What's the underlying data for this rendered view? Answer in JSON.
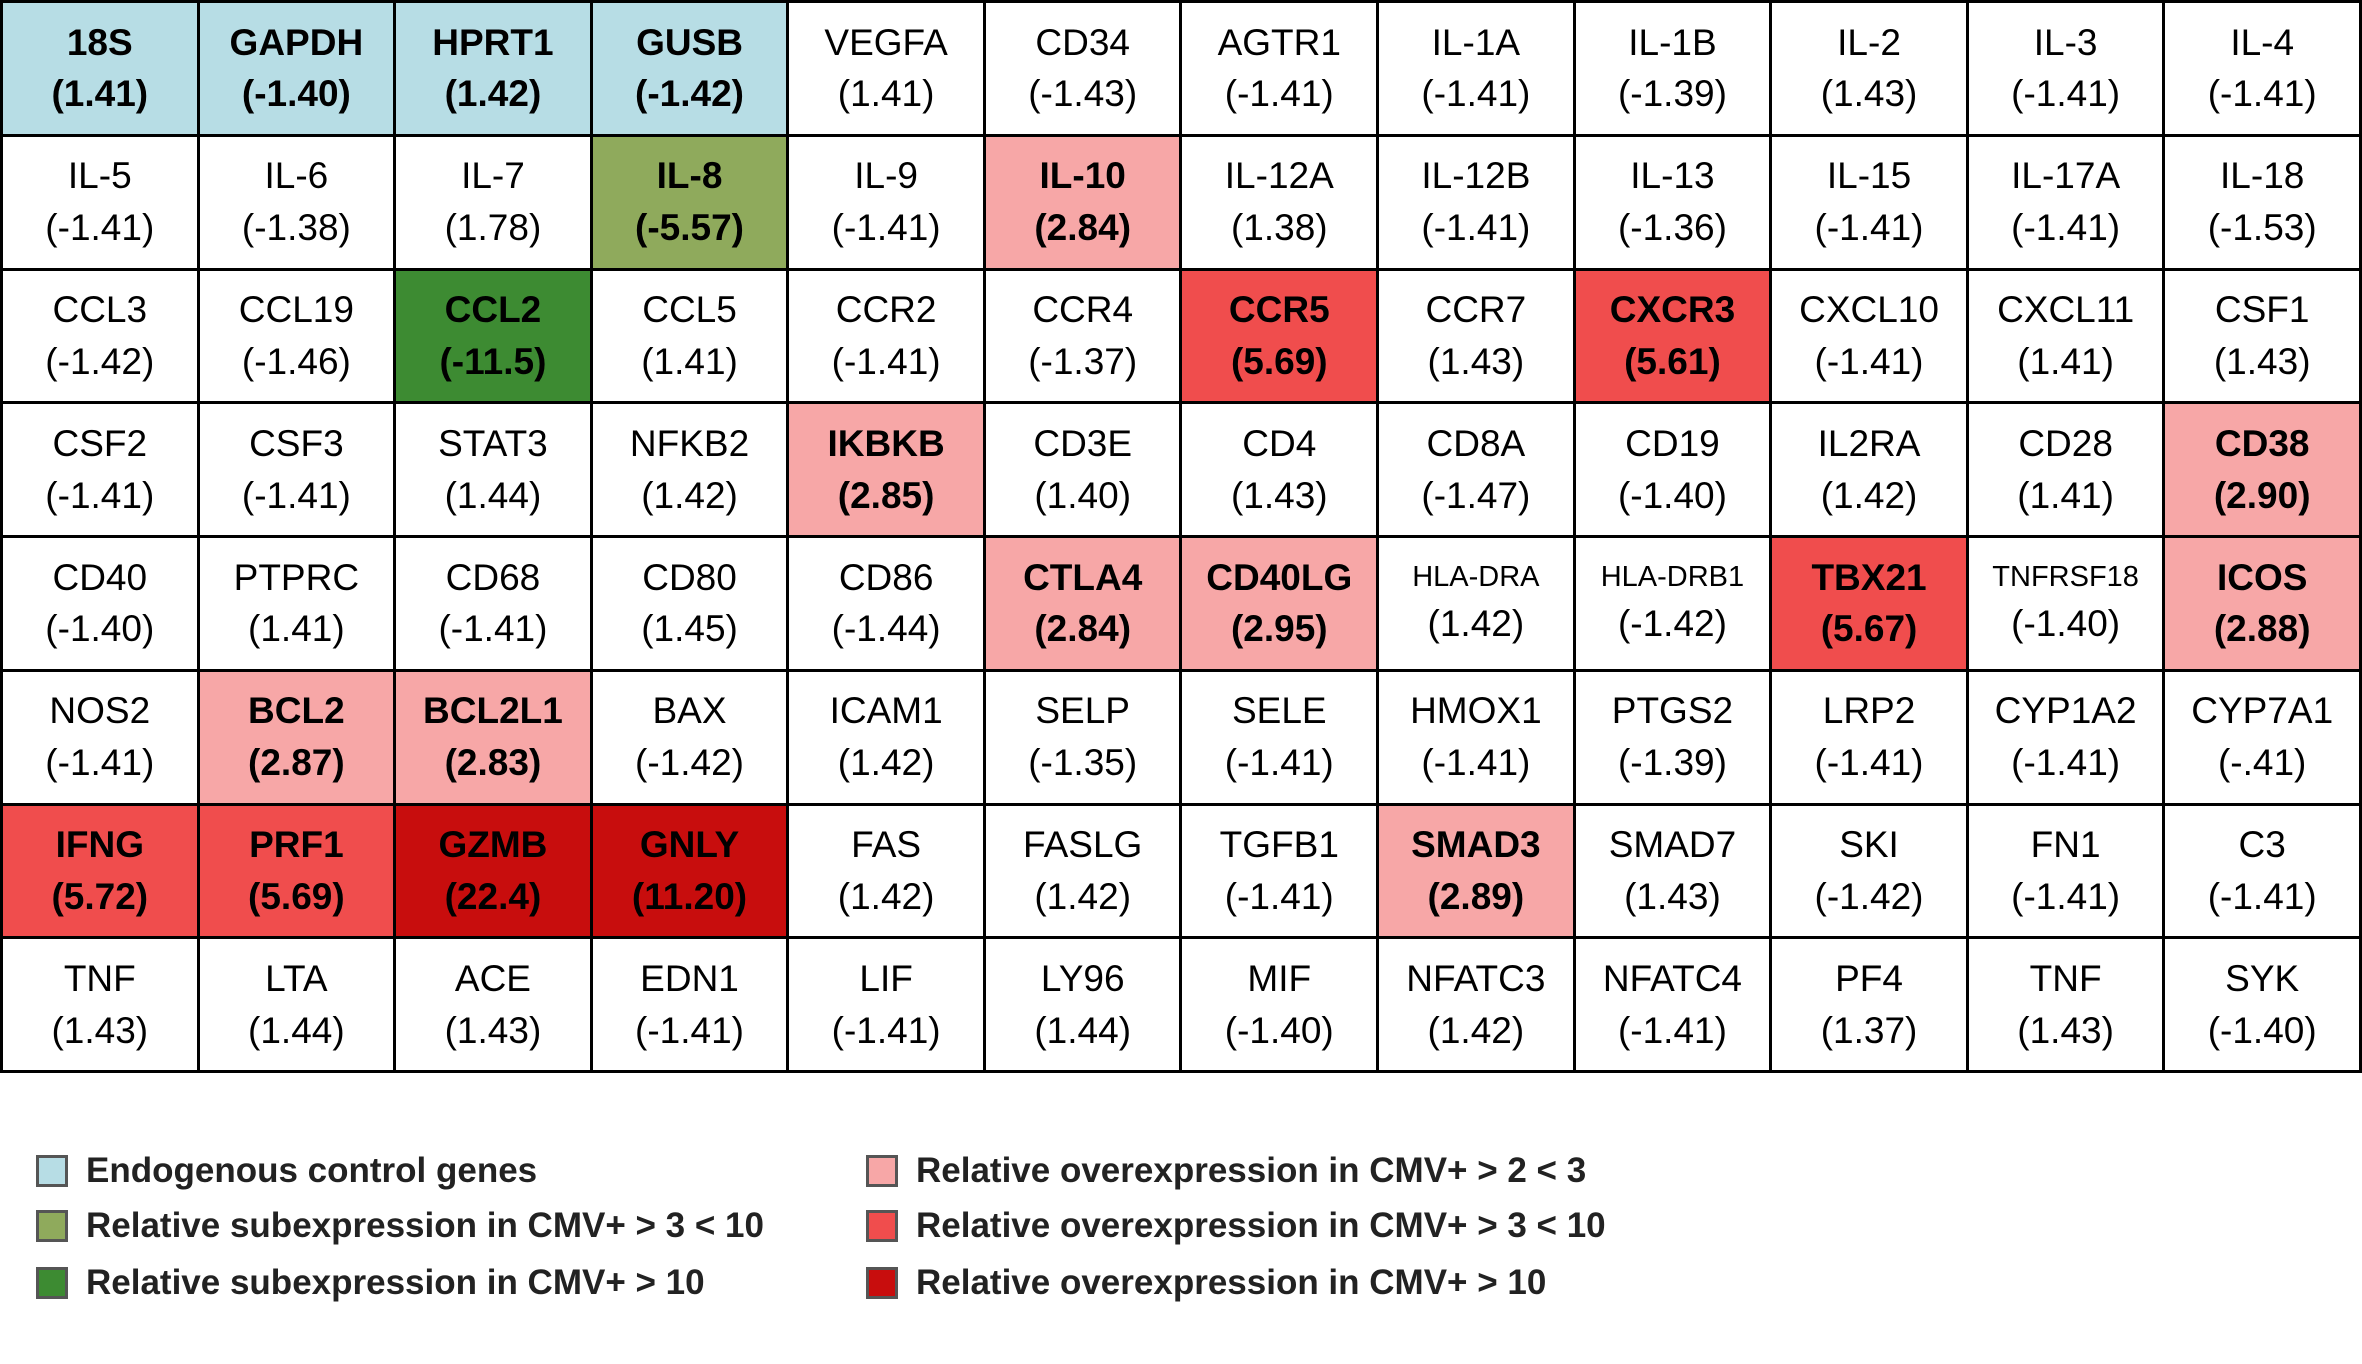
{
  "chart_data": {
    "type": "table",
    "title": "",
    "columns": 12,
    "colors": {
      "control": "#b7dde5",
      "sub_3_10": "#8faa5c",
      "sub_10": "#3d8b32",
      "over_2_3": "#f7a7a7",
      "over_3_10": "#f04d4d",
      "over_10": "#c80d0d",
      "none": "#ffffff"
    },
    "cells": [
      {
        "gene": "18S",
        "value": "(1.41)",
        "category": "control"
      },
      {
        "gene": "GAPDH",
        "value": "(-1.40)",
        "category": "control"
      },
      {
        "gene": "HPRT1",
        "value": "(1.42)",
        "category": "control"
      },
      {
        "gene": "GUSB",
        "value": "(-1.42)",
        "category": "control"
      },
      {
        "gene": "VEGFA",
        "value": "(1.41)",
        "category": "none"
      },
      {
        "gene": "CD34",
        "value": "(-1.43)",
        "category": "none"
      },
      {
        "gene": "AGTR1",
        "value": "(-1.41)",
        "category": "none"
      },
      {
        "gene": "IL-1A",
        "value": "(-1.41)",
        "category": "none"
      },
      {
        "gene": "IL-1B",
        "value": "(-1.39)",
        "category": "none"
      },
      {
        "gene": "IL-2",
        "value": "(1.43)",
        "category": "none"
      },
      {
        "gene": "IL-3",
        "value": "(-1.41)",
        "category": "none"
      },
      {
        "gene": "IL-4",
        "value": "(-1.41)",
        "category": "none"
      },
      {
        "gene": "IL-5",
        "value": "(-1.41)",
        "category": "none"
      },
      {
        "gene": "IL-6",
        "value": "(-1.38)",
        "category": "none"
      },
      {
        "gene": "IL-7",
        "value": "(1.78)",
        "category": "none"
      },
      {
        "gene": "IL-8",
        "value": "(-5.57)",
        "category": "sub_3_10"
      },
      {
        "gene": "IL-9",
        "value": "(-1.41)",
        "category": "none"
      },
      {
        "gene": "IL-10",
        "value": "(2.84)",
        "category": "over_2_3"
      },
      {
        "gene": "IL-12A",
        "value": "(1.38)",
        "category": "none"
      },
      {
        "gene": "IL-12B",
        "value": "(-1.41)",
        "category": "none"
      },
      {
        "gene": "IL-13",
        "value": "(-1.36)",
        "category": "none"
      },
      {
        "gene": "IL-15",
        "value": "(-1.41)",
        "category": "none"
      },
      {
        "gene": "IL-17A",
        "value": "(-1.41)",
        "category": "none"
      },
      {
        "gene": "IL-18",
        "value": "(-1.53)",
        "category": "none"
      },
      {
        "gene": "CCL3",
        "value": "(-1.42)",
        "category": "none"
      },
      {
        "gene": "CCL19",
        "value": "(-1.46)",
        "category": "none"
      },
      {
        "gene": "CCL2",
        "value": "(-11.5)",
        "category": "sub_10"
      },
      {
        "gene": "CCL5",
        "value": "(1.41)",
        "category": "none"
      },
      {
        "gene": "CCR2",
        "value": "(-1.41)",
        "category": "none"
      },
      {
        "gene": "CCR4",
        "value": "(-1.37)",
        "category": "none"
      },
      {
        "gene": "CCR5",
        "value": "(5.69)",
        "category": "over_3_10"
      },
      {
        "gene": "CCR7",
        "value": "(1.43)",
        "category": "none"
      },
      {
        "gene": "CXCR3",
        "value": "(5.61)",
        "category": "over_3_10"
      },
      {
        "gene": "CXCL10",
        "value": "(-1.41)",
        "category": "none"
      },
      {
        "gene": "CXCL11",
        "value": "(1.41)",
        "category": "none"
      },
      {
        "gene": "CSF1",
        "value": "(1.43)",
        "category": "none"
      },
      {
        "gene": "CSF2",
        "value": "(-1.41)",
        "category": "none"
      },
      {
        "gene": "CSF3",
        "value": "(-1.41)",
        "category": "none"
      },
      {
        "gene": "STAT3",
        "value": "(1.44)",
        "category": "none"
      },
      {
        "gene": "NFKB2",
        "value": "(1.42)",
        "category": "none"
      },
      {
        "gene": "IKBKB",
        "value": "(2.85)",
        "category": "over_2_3"
      },
      {
        "gene": "CD3E",
        "value": "(1.40)",
        "category": "none"
      },
      {
        "gene": "CD4",
        "value": "(1.43)",
        "category": "none"
      },
      {
        "gene": "CD8A",
        "value": "(-1.47)",
        "category": "none"
      },
      {
        "gene": "CD19",
        "value": "(-1.40)",
        "category": "none"
      },
      {
        "gene": "IL2RA",
        "value": "(1.42)",
        "category": "none"
      },
      {
        "gene": "CD28",
        "value": "(1.41)",
        "category": "none"
      },
      {
        "gene": "CD38",
        "value": "(2.90)",
        "category": "over_2_3"
      },
      {
        "gene": "CD40",
        "value": "(-1.40)",
        "category": "none"
      },
      {
        "gene": "PTPRC",
        "value": "(1.41)",
        "category": "none"
      },
      {
        "gene": "CD68",
        "value": "(-1.41)",
        "category": "none"
      },
      {
        "gene": "CD80",
        "value": "(1.45)",
        "category": "none"
      },
      {
        "gene": "CD86",
        "value": "(-1.44)",
        "category": "none"
      },
      {
        "gene": "CTLA4",
        "value": "(2.84)",
        "category": "over_2_3"
      },
      {
        "gene": "CD40LG",
        "value": "(2.95)",
        "category": "over_2_3"
      },
      {
        "gene": "HLA-DRA",
        "value": "(1.42)",
        "category": "none",
        "small": true
      },
      {
        "gene": "HLA-DRB1",
        "value": "(-1.42)",
        "category": "none",
        "small": true
      },
      {
        "gene": "TBX21",
        "value": "(5.67)",
        "category": "over_3_10"
      },
      {
        "gene": "TNFRSF18",
        "value": "(-1.40)",
        "category": "none",
        "small": true
      },
      {
        "gene": "ICOS",
        "value": "(2.88)",
        "category": "over_2_3"
      },
      {
        "gene": "NOS2",
        "value": "(-1.41)",
        "category": "none"
      },
      {
        "gene": "BCL2",
        "value": "(2.87)",
        "category": "over_2_3"
      },
      {
        "gene": "BCL2L1",
        "value": "(2.83)",
        "category": "over_2_3"
      },
      {
        "gene": "BAX",
        "value": "(-1.42)",
        "category": "none"
      },
      {
        "gene": "ICAM1",
        "value": "(1.42)",
        "category": "none"
      },
      {
        "gene": "SELP",
        "value": "(-1.35)",
        "category": "none"
      },
      {
        "gene": "SELE",
        "value": "(-1.41)",
        "category": "none"
      },
      {
        "gene": "HMOX1",
        "value": "(-1.41)",
        "category": "none"
      },
      {
        "gene": "PTGS2",
        "value": "(-1.39)",
        "category": "none"
      },
      {
        "gene": "LRP2",
        "value": "(-1.41)",
        "category": "none"
      },
      {
        "gene": "CYP1A2",
        "value": "(-1.41)",
        "category": "none"
      },
      {
        "gene": "CYP7A1",
        "value": "(-.41)",
        "category": "none"
      },
      {
        "gene": "IFNG",
        "value": "(5.72)",
        "category": "over_3_10"
      },
      {
        "gene": "PRF1",
        "value": "(5.69)",
        "category": "over_3_10"
      },
      {
        "gene": "GZMB",
        "value": "(22.4)",
        "category": "over_10"
      },
      {
        "gene": "GNLY",
        "value": "(11.20)",
        "category": "over_10"
      },
      {
        "gene": "FAS",
        "value": "(1.42)",
        "category": "none"
      },
      {
        "gene": "FASLG",
        "value": "(1.42)",
        "category": "none"
      },
      {
        "gene": "TGFB1",
        "value": "(-1.41)",
        "category": "none"
      },
      {
        "gene": "SMAD3",
        "value": "(2.89)",
        "category": "over_2_3"
      },
      {
        "gene": "SMAD7",
        "value": "(1.43)",
        "category": "none"
      },
      {
        "gene": "SKI",
        "value": "(-1.42)",
        "category": "none"
      },
      {
        "gene": "FN1",
        "value": "(-1.41)",
        "category": "none"
      },
      {
        "gene": "C3",
        "value": "(-1.41)",
        "category": "none"
      },
      {
        "gene": "TNF",
        "value": "(1.43)",
        "category": "none"
      },
      {
        "gene": "LTA",
        "value": "(1.44)",
        "category": "none"
      },
      {
        "gene": "ACE",
        "value": "(1.43)",
        "category": "none"
      },
      {
        "gene": "EDN1",
        "value": "(-1.41)",
        "category": "none"
      },
      {
        "gene": "LIF",
        "value": "(-1.41)",
        "category": "none"
      },
      {
        "gene": "LY96",
        "value": "(1.44)",
        "category": "none"
      },
      {
        "gene": "MIF",
        "value": "(-1.40)",
        "category": "none"
      },
      {
        "gene": "NFATC3",
        "value": "(1.42)",
        "category": "none"
      },
      {
        "gene": "NFATC4",
        "value": "(-1.41)",
        "category": "none"
      },
      {
        "gene": "PF4",
        "value": "(1.37)",
        "category": "none"
      },
      {
        "gene": "TNF",
        "value": "(1.43)",
        "category": "none"
      },
      {
        "gene": "SYK",
        "value": "(-1.40)",
        "category": "none"
      }
    ],
    "legend": [
      {
        "label": "Endogenous  control  genes",
        "category": "control",
        "column": "left"
      },
      {
        "label": "Relative subexpression  in CMV+ > 3 < 10",
        "category": "sub_3_10",
        "column": "left"
      },
      {
        "label": "Relative subexpression  in CMV+ > 10",
        "category": "sub_10",
        "column": "left"
      },
      {
        "label": "Relative overexpression  in CMV+ > 2 < 3",
        "category": "over_2_3",
        "column": "right"
      },
      {
        "label": "Relative overexpression  in CMV+ > 3 < 10",
        "category": "over_3_10",
        "column": "right"
      },
      {
        "label": "Relative overexpression  in CMV+ > 10",
        "category": "over_10",
        "column": "right"
      }
    ]
  }
}
